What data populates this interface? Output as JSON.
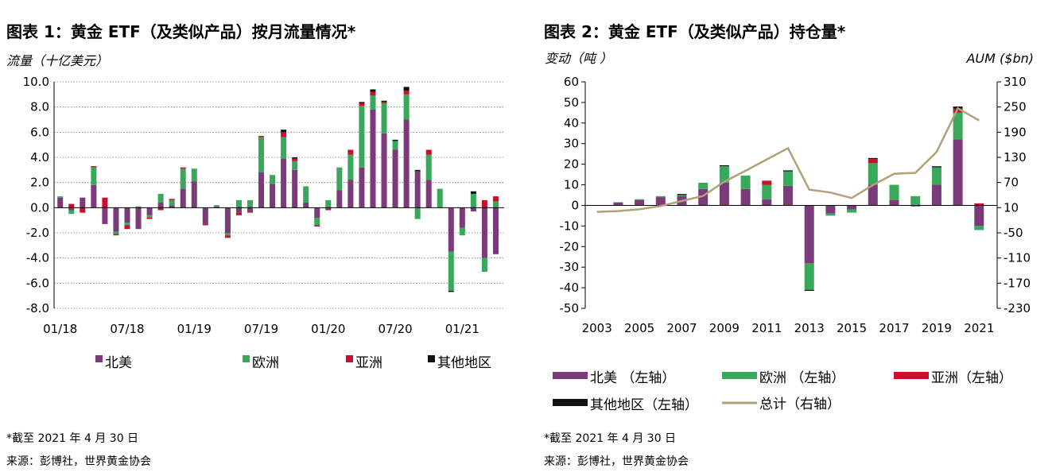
{
  "chart1": {
    "title": "图表 1：黄金 ETF（及类似产品）按月流量情况*",
    "ylabel": "流量（十亿美元）",
    "footnote1": "*截至 2021 年 4 月 30 日",
    "footnote2": "来源：彭博社，世界黄金协会",
    "colors": {
      "north_america": "#7b3a7a",
      "europe": "#3aa85b",
      "asia": "#c8102e",
      "other": "#111111"
    }
  },
  "chart2": {
    "title": "图表 2：黄金 ETF（及类似产品）持仓量*",
    "ylabel_left": "变动（吨 ）",
    "ylabel_right": "AUM ($bn)",
    "footnote1": "*截至 2021 年 4 月 30 日",
    "footnote2": "来源：彭博社，世界黄金协会",
    "colors": {
      "north_america": "#7b3a7a",
      "europe": "#3aa85b",
      "asia": "#c8102e",
      "other": "#111111",
      "total": "#b3a079"
    }
  },
  "chart_data": [
    {
      "type": "bar",
      "stacked": true,
      "title": "图表 1：黄金 ETF（及类似产品）按月流量情况*",
      "ylabel": "流量（十亿美元）",
      "ylim": [
        -8,
        10
      ],
      "yticks": [
        "-8.0",
        "-6.0",
        "-4.0",
        "-2.0",
        "0.0",
        "2.0",
        "4.0",
        "6.0",
        "8.0",
        "10.0"
      ],
      "grid": true,
      "legend": "bottom",
      "xtick_labels": [
        "01/18",
        "07/18",
        "01/19",
        "07/19",
        "01/20",
        "07/20",
        "01/21"
      ],
      "categories": [
        "2018-01",
        "2018-02",
        "2018-03",
        "2018-04",
        "2018-05",
        "2018-06",
        "2018-07",
        "2018-08",
        "2018-09",
        "2018-10",
        "2018-11",
        "2018-12",
        "2019-01",
        "2019-02",
        "2019-03",
        "2019-04",
        "2019-05",
        "2019-06",
        "2019-07",
        "2019-08",
        "2019-09",
        "2019-10",
        "2019-11",
        "2019-12",
        "2020-01",
        "2020-02",
        "2020-03",
        "2020-04",
        "2020-05",
        "2020-06",
        "2020-07",
        "2020-08",
        "2020-09",
        "2020-10",
        "2020-11",
        "2020-12",
        "2021-01",
        "2021-02",
        "2021-03",
        "2021-04"
      ],
      "series": [
        {
          "name": "北美",
          "values": [
            0.8,
            -0.2,
            0.8,
            1.8,
            -1.3,
            -1.9,
            -1.2,
            -1.7,
            -0.6,
            0.4,
            0.2,
            1.5,
            2.1,
            -1.3,
            0.1,
            -2.0,
            -0.4,
            -0.3,
            2.8,
            1.9,
            3.9,
            3.0,
            0.4,
            -0.8,
            -0.1,
            1.4,
            2.2,
            3.2,
            7.8,
            5.9,
            4.6,
            7.0,
            2.9,
            2.2,
            0,
            -3.5,
            -1.6,
            -0.3,
            -4.0,
            -3.7
          ]
        },
        {
          "name": "欧洲",
          "values": [
            0.1,
            -0.3,
            0,
            1.4,
            0,
            -0.2,
            -0.2,
            0.1,
            -0.2,
            0.7,
            0.4,
            1.6,
            1.0,
            0,
            0.1,
            -0.2,
            0.6,
            0.6,
            2.8,
            0.7,
            1.7,
            0.7,
            1.3,
            -0.6,
            0.6,
            1.8,
            2.0,
            4.9,
            1.1,
            2.4,
            0.7,
            2.0,
            -0.9,
            2.0,
            1.5,
            -3.1,
            -0.6,
            1.1,
            -1.1,
            0.5
          ]
        },
        {
          "name": "亚洲",
          "values": [
            0,
            0.3,
            -0.4,
            0.1,
            0.8,
            -0.1,
            -0.3,
            0,
            -0.1,
            -0.2,
            0.1,
            0.1,
            0,
            -0.1,
            0,
            -0.2,
            -0.2,
            -0.1,
            0.1,
            0,
            0.4,
            0.2,
            0,
            -0.1,
            -0.1,
            0,
            0.4,
            0.2,
            0.3,
            0.1,
            0,
            0.3,
            0,
            0.4,
            0,
            0,
            0,
            0,
            0.6,
            0.4
          ]
        },
        {
          "name": "其他地区",
          "values": [
            0,
            0,
            0,
            0,
            0,
            0,
            0,
            0,
            0,
            0,
            0,
            0,
            0,
            0,
            0,
            0,
            0,
            0,
            0,
            0,
            0.2,
            0.1,
            0,
            0,
            0,
            0,
            0,
            0.1,
            0.2,
            0.1,
            0.1,
            0.3,
            0.1,
            0,
            0,
            -0.1,
            0,
            0.2,
            0,
            0
          ]
        }
      ]
    },
    {
      "type": "bar",
      "stacked": true,
      "title": "图表 2：黄金 ETF（及类似产品）持仓量*",
      "ylabel_left": "变动（吨 ）",
      "ylabel_right": "AUM ($bn)",
      "ylim_left": [
        -50,
        60
      ],
      "ylim_right": [
        -230,
        310
      ],
      "yticks_left": [
        "-50",
        "-40",
        "-30",
        "-20",
        "-10",
        "0",
        "10",
        "20",
        "30",
        "40",
        "50",
        "60"
      ],
      "yticks_right": [
        "-230",
        "-170",
        "-110",
        "-50",
        "10",
        "70",
        "130",
        "190",
        "250",
        "310"
      ],
      "grid": false,
      "legend": "bottom",
      "xtick_labels": [
        "2003",
        "2005",
        "2007",
        "2009",
        "2011",
        "2013",
        "2015",
        "2017",
        "2019",
        "2021"
      ],
      "categories": [
        "2003",
        "2004",
        "2005",
        "2006",
        "2007",
        "2008",
        "2009",
        "2010",
        "2011",
        "2012",
        "2013",
        "2014",
        "2015",
        "2016",
        "2017",
        "2018",
        "2019",
        "2020",
        "2021"
      ],
      "series": [
        {
          "name": "北美 （左轴）",
          "axis": "left",
          "values": [
            0,
            1.5,
            2.5,
            4,
            4.5,
            8,
            11,
            8,
            3,
            9.5,
            -28,
            -4,
            -2,
            10,
            2.5,
            -0.5,
            10,
            32,
            -10
          ]
        },
        {
          "name": "欧洲 （左轴）",
          "axis": "left",
          "values": [
            0,
            0,
            0.5,
            0.5,
            0.5,
            3,
            8,
            6.5,
            7,
            7,
            -13,
            -1,
            -1.5,
            10.5,
            7.5,
            4.5,
            8.5,
            13,
            -2
          ]
        },
        {
          "name": "亚洲（左轴）",
          "axis": "left",
          "values": [
            0,
            0,
            0,
            0,
            0,
            0,
            0,
            0,
            2,
            0,
            0,
            0,
            0,
            2,
            0,
            0,
            0,
            2,
            1
          ]
        },
        {
          "name": "其他地区（左轴）",
          "axis": "left",
          "values": [
            0,
            0,
            0,
            0,
            0.5,
            0,
            0.5,
            0,
            0,
            0.5,
            -0.5,
            0,
            0,
            0.5,
            0,
            0,
            0.5,
            1,
            0
          ]
        },
        {
          "name": "总计（右轴）",
          "axis": "right",
          "type": "line",
          "values": [
            0,
            2,
            6,
            14,
            26,
            38,
            72,
            98,
            125,
            152,
            53,
            46,
            33,
            64,
            91,
            93,
            143,
            247,
            218
          ]
        }
      ]
    }
  ]
}
